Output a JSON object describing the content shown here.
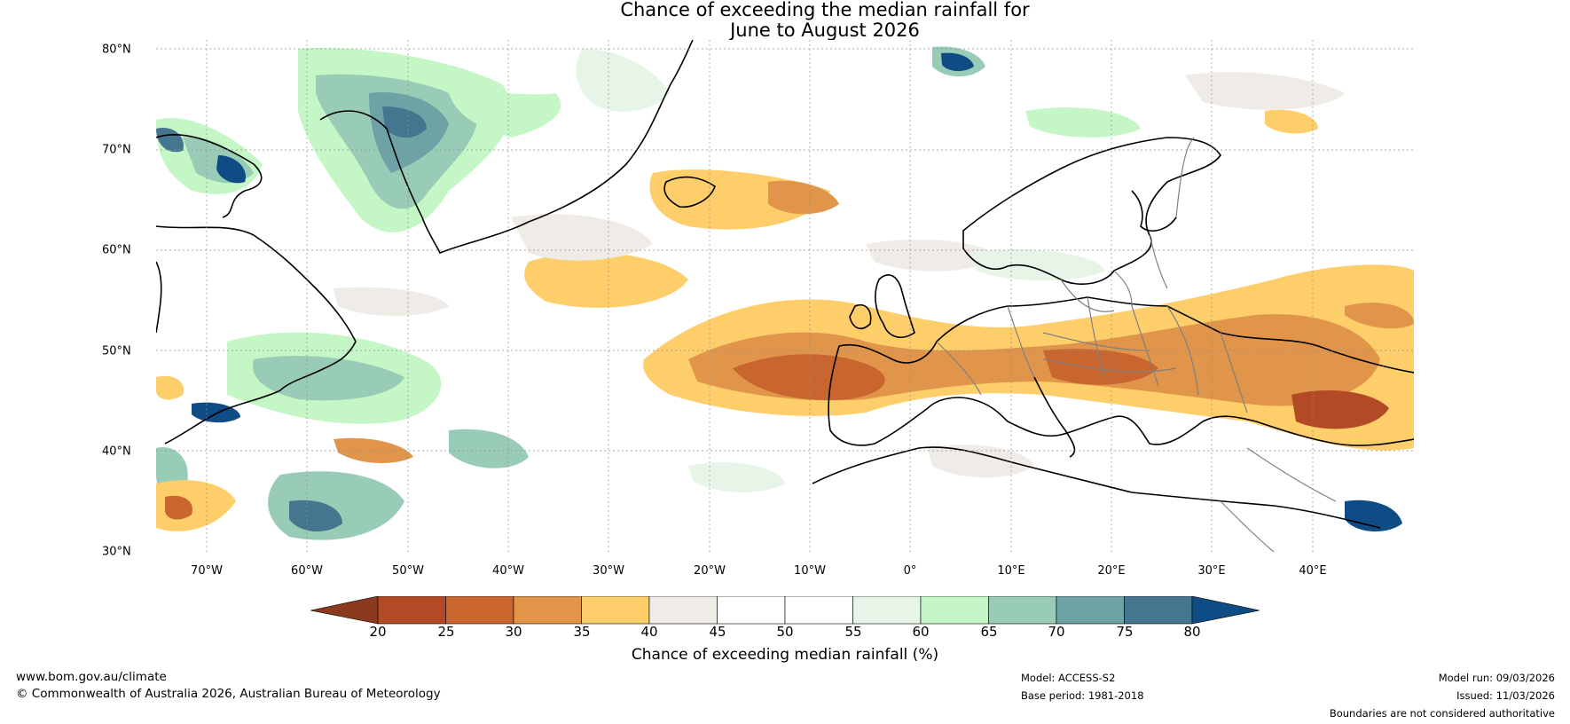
{
  "title": {
    "line1": "Chance of exceeding the median rainfall for",
    "line2": "June to August 2026"
  },
  "map": {
    "latitude_labels": [
      "80°N",
      "70°N",
      "60°N",
      "50°N",
      "40°N",
      "30°N"
    ],
    "longitude_labels": [
      "70°W",
      "60°W",
      "50°W",
      "40°W",
      "30°W",
      "20°W",
      "10°W",
      "0°",
      "10°E",
      "20°E",
      "30°E",
      "40°E"
    ],
    "lat_range": [
      30,
      81
    ],
    "lon_range": [
      -75,
      50
    ],
    "land_color": "#ffffff",
    "coast_color": "#000000",
    "border_color": "#808080"
  },
  "colorbar": {
    "label": "Chance of exceeding median rainfall (%)",
    "ticks": [
      "20",
      "25",
      "30",
      "35",
      "40",
      "45",
      "50",
      "55",
      "60",
      "65",
      "70",
      "75",
      "80"
    ],
    "low_extension_color": "#8c3a1e",
    "high_extension_color": "#0f4c86",
    "bins": [
      {
        "range": "20-25",
        "color": "#b24a26"
      },
      {
        "range": "25-30",
        "color": "#c9652e"
      },
      {
        "range": "30-35",
        "color": "#e0954a"
      },
      {
        "range": "35-40",
        "color": "#fece6a"
      },
      {
        "range": "40-45",
        "color": "#efebe7"
      },
      {
        "range": "45-50",
        "color": "#ffffff"
      },
      {
        "range": "50-55",
        "color": "#ffffff"
      },
      {
        "range": "55-60",
        "color": "#e6f5e8"
      },
      {
        "range": "60-65",
        "color": "#c4f6c6"
      },
      {
        "range": "65-70",
        "color": "#98ccb6"
      },
      {
        "range": "70-75",
        "color": "#6ea3a6"
      },
      {
        "range": "75-80",
        "color": "#44778f"
      }
    ]
  },
  "footer": {
    "website": "www.bom.gov.au/climate",
    "copyright": "© Commonwealth of Australia 2026, Australian Bureau of Meteorology",
    "model": "Model: ACCESS-S2",
    "base_period": "Base period: 1981-2018",
    "model_run": "Model run: 09/03/2026",
    "issued": "Issued: 11/03/2026",
    "disclaimer": "Boundaries are not considered authoritative"
  }
}
